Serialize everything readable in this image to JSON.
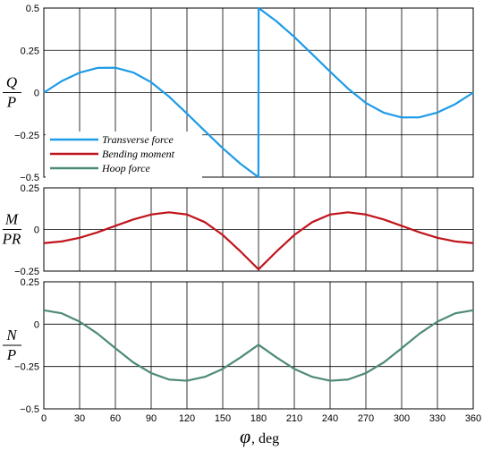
{
  "chart_data": {
    "type": "line",
    "xlabel": {
      "symbol": "φ",
      "unit": ", deg"
    },
    "x_ticks": [
      "0",
      "30",
      "60",
      "90",
      "120",
      "150",
      "180",
      "210",
      "240",
      "270",
      "300",
      "330",
      "360"
    ],
    "xlim": [
      0,
      360
    ],
    "panels": [
      {
        "ylabel": {
          "numerator": "Q",
          "denominator": "P"
        },
        "ylim": [
          -0.5,
          0.5
        ],
        "y_ticks": [
          "0.5",
          "0.25",
          "0",
          "−0.25",
          "−0.5"
        ],
        "series_index": 0
      },
      {
        "ylabel": {
          "numerator": "M",
          "denominator": "PR"
        },
        "ylim": [
          -0.25,
          0.25
        ],
        "y_ticks": [
          "0.25",
          "0",
          "−0.25"
        ],
        "series_index": 1
      },
      {
        "ylabel": {
          "numerator": "N",
          "denominator": "P"
        },
        "ylim": [
          -0.5,
          0.25
        ],
        "y_ticks": [
          "0.25",
          "0",
          "−0.25",
          "−0.5"
        ],
        "series_index": 2
      }
    ],
    "x": [
      0,
      15,
      30,
      45,
      60,
      75,
      90,
      105,
      120,
      135,
      150,
      165,
      179.9,
      180.1,
      195,
      210,
      225,
      240,
      255,
      270,
      285,
      300,
      315,
      330,
      345,
      360
    ],
    "series": [
      {
        "name": "Transverse force",
        "color": "#1e9be6",
        "values": [
          0,
          0.068,
          0.118,
          0.146,
          0.147,
          0.119,
          0.061,
          -0.024,
          -0.124,
          -0.227,
          -0.329,
          -0.422,
          -0.5,
          0.5,
          0.422,
          0.329,
          0.227,
          0.124,
          0.024,
          -0.061,
          -0.119,
          -0.147,
          -0.146,
          -0.118,
          -0.068,
          0
        ]
      },
      {
        "name": "Bending moment",
        "color": "#c0151c",
        "values": [
          -0.082,
          -0.072,
          -0.05,
          -0.017,
          0.022,
          0.06,
          0.09,
          0.103,
          0.09,
          0.044,
          -0.033,
          -0.133,
          -0.239,
          -0.239,
          -0.133,
          -0.033,
          0.044,
          0.09,
          0.103,
          0.09,
          0.06,
          0.022,
          -0.017,
          -0.05,
          -0.072,
          -0.082
        ]
      },
      {
        "name": "Hoop force",
        "color": "#4e8a78",
        "values": [
          0.082,
          0.064,
          0.015,
          -0.056,
          -0.142,
          -0.226,
          -0.289,
          -0.327,
          -0.334,
          -0.311,
          -0.264,
          -0.196,
          -0.122,
          -0.122,
          -0.196,
          -0.264,
          -0.311,
          -0.334,
          -0.327,
          -0.289,
          -0.226,
          -0.142,
          -0.056,
          0.015,
          0.064,
          0.082
        ]
      }
    ],
    "legend_position": "inside-bottom-left of top panel",
    "grid": true
  }
}
